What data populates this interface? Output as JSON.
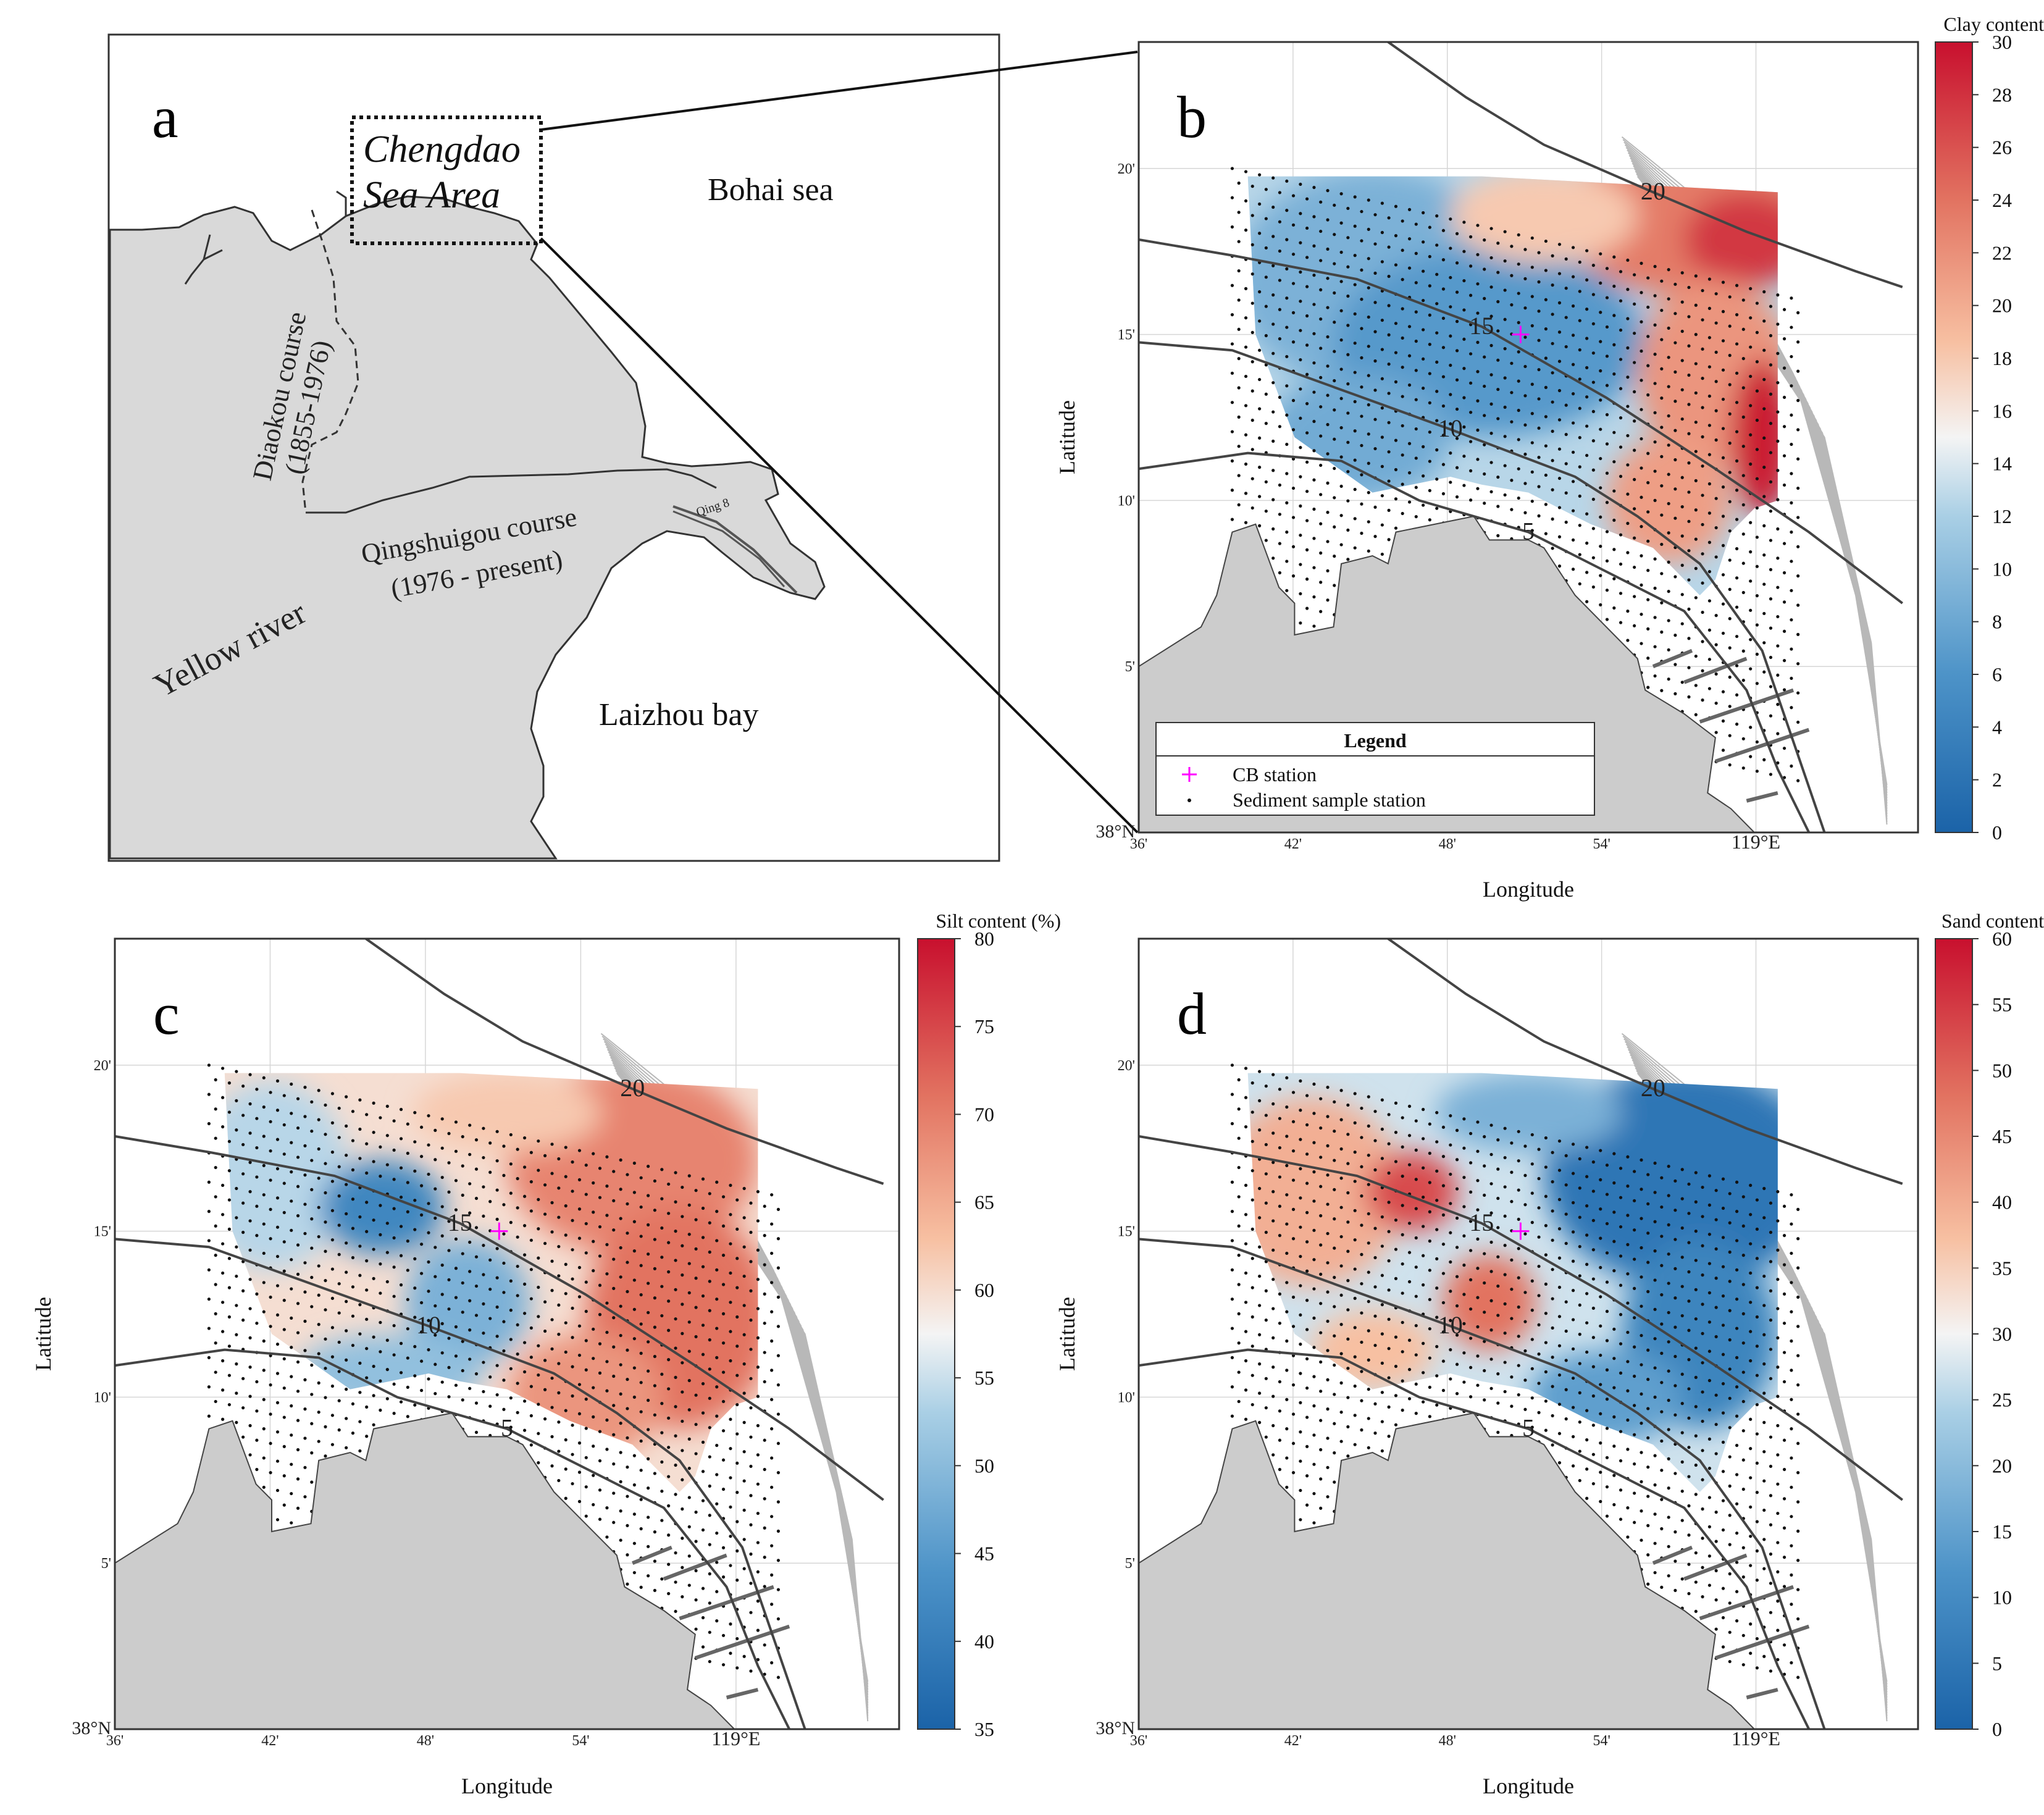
{
  "panel_a": {
    "letter": "a",
    "study_area_line1": "Chengdao",
    "study_area_line2": "Sea Area",
    "bohai": "Bohai sea",
    "laizhou": "Laizhou bay",
    "yellow_river": "Yellow   river",
    "diaokou_line1": "Diaokou course",
    "diaokou_line2": "(1855-1976)",
    "qing_line1": "Qingshuigou course",
    "qing_line2": "(1976 - present)",
    "qing8": "Qing 8"
  },
  "map_axes": {
    "xlabel": "Longitude",
    "ylabel": "Latitude",
    "x_ticks": [
      "36'",
      "42'",
      "48'",
      "54'",
      "119°E"
    ],
    "y_ticks": [
      "38°N",
      "5'",
      "10'",
      "15'",
      "20'"
    ]
  },
  "contours": {
    "major_levels": [
      "5",
      "10",
      "15",
      "20"
    ]
  },
  "legend": {
    "title": "Legend",
    "cb_station": "CB  station",
    "sediment_station": "Sediment sample station",
    "cb_color": "#ff00ff"
  },
  "colormap": {
    "low": "#1f6eb0",
    "mid": "#f7f7f7",
    "high": "#c8102e"
  },
  "panels": [
    {
      "id": "b",
      "letter": "b",
      "variable": "Clay content (%)",
      "range": [
        0,
        30
      ],
      "ticks": [
        "0",
        "2",
        "4",
        "6",
        "8",
        "10",
        "12",
        "14",
        "16",
        "18",
        "20",
        "22",
        "24",
        "26",
        "28",
        "30"
      ],
      "show_legend": true
    },
    {
      "id": "c",
      "letter": "c",
      "variable": "Silt content (%)",
      "range": [
        35,
        80
      ],
      "ticks": [
        "35",
        "40",
        "45",
        "50",
        "55",
        "60",
        "65",
        "70",
        "75",
        "80"
      ],
      "show_legend": false
    },
    {
      "id": "d",
      "letter": "d",
      "variable": "Sand content (%)",
      "range": [
        0,
        60
      ],
      "ticks": [
        "0",
        "5",
        "10",
        "15",
        "20",
        "25",
        "30",
        "35",
        "40",
        "45",
        "50",
        "55",
        "60"
      ],
      "show_legend": false
    }
  ]
}
